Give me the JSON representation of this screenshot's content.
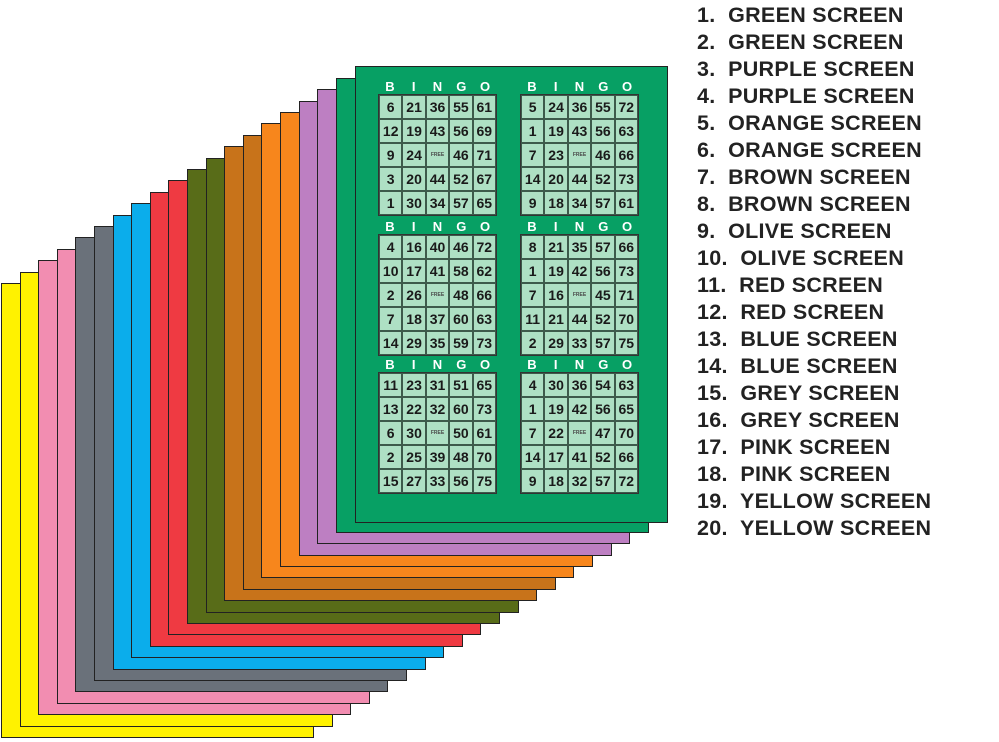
{
  "colors": {
    "green": "#07a064",
    "purple": "#bd7fc2",
    "orange": "#f7861c",
    "brown": "#c8731a",
    "olive": "#586c18",
    "red": "#ef3a42",
    "blue": "#0badeb",
    "grey": "#6a717a",
    "pink": "#f28db1",
    "yellow": "#fff200",
    "cell": "#aee0c4"
  },
  "sheets": [
    {
      "color": "#fff200",
      "label": "yellow-sheet-20"
    },
    {
      "color": "#fff200",
      "label": "yellow-sheet-19"
    },
    {
      "color": "#f28db1",
      "label": "pink-sheet-18"
    },
    {
      "color": "#f28db1",
      "label": "pink-sheet-17"
    },
    {
      "color": "#6a717a",
      "label": "grey-sheet-16"
    },
    {
      "color": "#6a717a",
      "label": "grey-sheet-15"
    },
    {
      "color": "#0badeb",
      "label": "blue-sheet-14"
    },
    {
      "color": "#0badeb",
      "label": "blue-sheet-13"
    },
    {
      "color": "#ef3a42",
      "label": "red-sheet-12"
    },
    {
      "color": "#ef3a42",
      "label": "red-sheet-11"
    },
    {
      "color": "#586c18",
      "label": "olive-sheet-10"
    },
    {
      "color": "#586c18",
      "label": "olive-sheet-9"
    },
    {
      "color": "#c8731a",
      "label": "brown-sheet-8"
    },
    {
      "color": "#c8731a",
      "label": "brown-sheet-7"
    },
    {
      "color": "#f7861c",
      "label": "orange-sheet-6"
    },
    {
      "color": "#f7861c",
      "label": "orange-sheet-5"
    },
    {
      "color": "#bd7fc2",
      "label": "purple-sheet-4"
    },
    {
      "color": "#bd7fc2",
      "label": "purple-sheet-3"
    },
    {
      "color": "#07a064",
      "label": "green-sheet-2"
    }
  ],
  "bingo_letters": [
    "B",
    "I",
    "N",
    "G",
    "O"
  ],
  "free_text": "FREE",
  "cards": [
    {
      "rows": [
        [
          "6",
          "21",
          "36",
          "55",
          "61"
        ],
        [
          "12",
          "19",
          "43",
          "56",
          "69"
        ],
        [
          "9",
          "24",
          "",
          "46",
          "71"
        ],
        [
          "3",
          "20",
          "44",
          "52",
          "67"
        ],
        [
          "1",
          "30",
          "34",
          "57",
          "65"
        ]
      ]
    },
    {
      "rows": [
        [
          "5",
          "24",
          "36",
          "55",
          "72"
        ],
        [
          "1",
          "19",
          "43",
          "56",
          "63"
        ],
        [
          "7",
          "23",
          "",
          "46",
          "66"
        ],
        [
          "14",
          "20",
          "44",
          "52",
          "73"
        ],
        [
          "9",
          "18",
          "34",
          "57",
          "61"
        ]
      ]
    },
    {
      "rows": [
        [
          "4",
          "16",
          "40",
          "46",
          "72"
        ],
        [
          "10",
          "17",
          "41",
          "58",
          "62"
        ],
        [
          "2",
          "26",
          "",
          "48",
          "66"
        ],
        [
          "7",
          "18",
          "37",
          "60",
          "63"
        ],
        [
          "14",
          "29",
          "35",
          "59",
          "73"
        ]
      ]
    },
    {
      "rows": [
        [
          "8",
          "21",
          "35",
          "57",
          "66"
        ],
        [
          "1",
          "19",
          "42",
          "56",
          "73"
        ],
        [
          "7",
          "16",
          "",
          "45",
          "71"
        ],
        [
          "11",
          "21",
          "44",
          "52",
          "70"
        ],
        [
          "2",
          "29",
          "33",
          "57",
          "75"
        ]
      ]
    },
    {
      "rows": [
        [
          "11",
          "23",
          "31",
          "51",
          "65"
        ],
        [
          "13",
          "22",
          "32",
          "60",
          "73"
        ],
        [
          "6",
          "30",
          "",
          "50",
          "61"
        ],
        [
          "2",
          "25",
          "39",
          "48",
          "70"
        ],
        [
          "15",
          "27",
          "33",
          "56",
          "75"
        ]
      ]
    },
    {
      "rows": [
        [
          "4",
          "30",
          "36",
          "54",
          "63"
        ],
        [
          "1",
          "19",
          "42",
          "56",
          "65"
        ],
        [
          "7",
          "22",
          "",
          "47",
          "70"
        ],
        [
          "14",
          "17",
          "41",
          "52",
          "66"
        ],
        [
          "9",
          "18",
          "32",
          "57",
          "72"
        ]
      ]
    }
  ],
  "legend": [
    "1.  GREEN SCREEN",
    "2.  GREEN SCREEN",
    "3.  PURPLE SCREEN",
    "4.  PURPLE SCREEN",
    "5.  ORANGE SCREEN",
    "6.  ORANGE SCREEN",
    "7.  BROWN SCREEN",
    "8.  BROWN SCREEN",
    "9.  OLIVE SCREEN",
    "10.  OLIVE SCREEN",
    "11.  RED SCREEN",
    "12.  RED SCREEN",
    "13.  BLUE SCREEN",
    "14.  BLUE SCREEN",
    "15.  GREY SCREEN",
    "16.  GREY SCREEN",
    "17.  PINK SCREEN",
    "18.  PINK SCREEN",
    "19.  YELLOW SCREEN",
    "20.  YELLOW SCREEN"
  ]
}
